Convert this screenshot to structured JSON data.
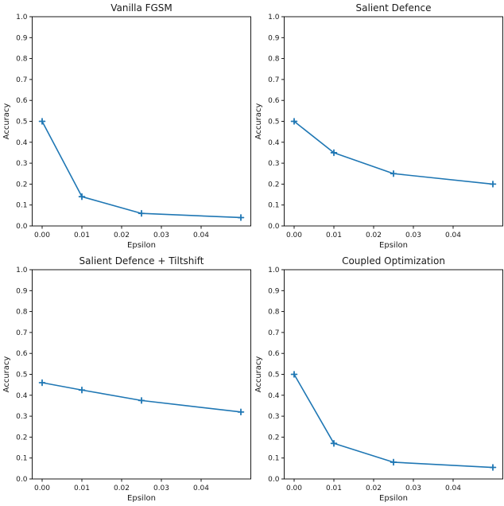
{
  "figure": {
    "background": "#ffffff",
    "layout": "2x2-subplot-grid",
    "text_color": "#1a1a1a",
    "axis_color": "#000000"
  },
  "chart_data": [
    {
      "type": "line",
      "title": "Vanilla FGSM",
      "xlabel": "Epsilon",
      "ylabel": "Accuracy",
      "x": [
        0.0,
        0.01,
        0.025,
        0.05
      ],
      "y": [
        0.5,
        0.14,
        0.06,
        0.04
      ],
      "xlim": [
        -0.0025,
        0.0525
      ],
      "ylim": [
        0.0,
        1.0
      ],
      "xticks": [
        0.0,
        0.01,
        0.02,
        0.03,
        0.04
      ],
      "xtick_labels": [
        "0.00",
        "0.01",
        "0.02",
        "0.03",
        "0.04"
      ],
      "yticks": [
        0.0,
        0.1,
        0.2,
        0.3,
        0.4,
        0.5,
        0.6,
        0.7,
        0.8,
        0.9,
        1.0
      ],
      "ytick_labels": [
        "0.0",
        "0.1",
        "0.2",
        "0.3",
        "0.4",
        "0.5",
        "0.6",
        "0.7",
        "0.8",
        "0.9",
        "1.0"
      ],
      "line_color": "#1f77b4",
      "marker": "plus",
      "grid": false,
      "legend": null
    },
    {
      "type": "line",
      "title": "Salient Defence",
      "xlabel": "Epsilon",
      "ylabel": "Accuracy",
      "x": [
        0.0,
        0.01,
        0.025,
        0.05
      ],
      "y": [
        0.5,
        0.35,
        0.25,
        0.2
      ],
      "xlim": [
        -0.0025,
        0.0525
      ],
      "ylim": [
        0.0,
        1.0
      ],
      "xticks": [
        0.0,
        0.01,
        0.02,
        0.03,
        0.04
      ],
      "xtick_labels": [
        "0.00",
        "0.01",
        "0.02",
        "0.03",
        "0.04"
      ],
      "yticks": [
        0.0,
        0.1,
        0.2,
        0.3,
        0.4,
        0.5,
        0.6,
        0.7,
        0.8,
        0.9,
        1.0
      ],
      "ytick_labels": [
        "0.0",
        "0.1",
        "0.2",
        "0.3",
        "0.4",
        "0.5",
        "0.6",
        "0.7",
        "0.8",
        "0.9",
        "1.0"
      ],
      "line_color": "#1f77b4",
      "marker": "plus",
      "grid": false,
      "legend": null
    },
    {
      "type": "line",
      "title": "Salient Defence + Tiltshift",
      "xlabel": "Epsilon",
      "ylabel": "Accuracy",
      "x": [
        0.0,
        0.01,
        0.025,
        0.05
      ],
      "y": [
        0.46,
        0.425,
        0.375,
        0.32
      ],
      "xlim": [
        -0.0025,
        0.0525
      ],
      "ylim": [
        0.0,
        1.0
      ],
      "xticks": [
        0.0,
        0.01,
        0.02,
        0.03,
        0.04
      ],
      "xtick_labels": [
        "0.00",
        "0.01",
        "0.02",
        "0.03",
        "0.04"
      ],
      "yticks": [
        0.0,
        0.1,
        0.2,
        0.3,
        0.4,
        0.5,
        0.6,
        0.7,
        0.8,
        0.9,
        1.0
      ],
      "ytick_labels": [
        "0.0",
        "0.1",
        "0.2",
        "0.3",
        "0.4",
        "0.5",
        "0.6",
        "0.7",
        "0.8",
        "0.9",
        "1.0"
      ],
      "line_color": "#1f77b4",
      "marker": "plus",
      "grid": false,
      "legend": null
    },
    {
      "type": "line",
      "title": "Coupled Optimization",
      "xlabel": "Epsilon",
      "ylabel": "Accuracy",
      "x": [
        0.0,
        0.01,
        0.025,
        0.05
      ],
      "y": [
        0.5,
        0.17,
        0.08,
        0.055
      ],
      "xlim": [
        -0.0025,
        0.0525
      ],
      "ylim": [
        0.0,
        1.0
      ],
      "xticks": [
        0.0,
        0.01,
        0.02,
        0.03,
        0.04
      ],
      "xtick_labels": [
        "0.00",
        "0.01",
        "0.02",
        "0.03",
        "0.04"
      ],
      "yticks": [
        0.0,
        0.1,
        0.2,
        0.3,
        0.4,
        0.5,
        0.6,
        0.7,
        0.8,
        0.9,
        1.0
      ],
      "ytick_labels": [
        "0.0",
        "0.1",
        "0.2",
        "0.3",
        "0.4",
        "0.5",
        "0.6",
        "0.7",
        "0.8",
        "0.9",
        "1.0"
      ],
      "line_color": "#1f77b4",
      "marker": "plus",
      "grid": false,
      "legend": null
    }
  ]
}
